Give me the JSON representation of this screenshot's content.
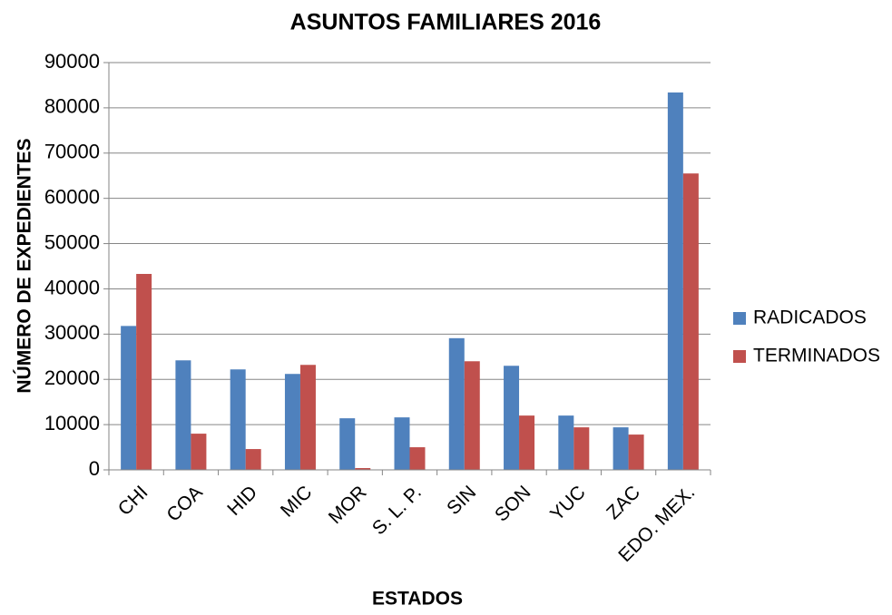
{
  "chart_data": {
    "type": "bar",
    "title": "ASUNTOS FAMILIARES 2016",
    "x_label": "ESTADOS",
    "y_label": "NÚMERO DE EXPEDIENTES",
    "categories": [
      "CHI",
      "COA",
      "HID",
      "MIC",
      "MOR",
      "S. L. P.",
      "SIN",
      "SON",
      "YUC",
      "ZAC",
      "EDO. MEX."
    ],
    "series": [
      {
        "name": "RADICADOS",
        "color": "#4f81bd",
        "values": [
          31800,
          24200,
          22200,
          21200,
          11400,
          11600,
          29100,
          23000,
          12000,
          9400,
          83400
        ]
      },
      {
        "name": "TERMINADOS",
        "color": "#c0504d",
        "values": [
          43300,
          8000,
          4600,
          23200,
          400,
          5000,
          24000,
          12000,
          9400,
          7800,
          65500
        ]
      }
    ],
    "ylim": [
      0,
      90000
    ],
    "yticks": [
      0,
      10000,
      20000,
      30000,
      40000,
      50000,
      60000,
      70000,
      80000,
      90000
    ],
    "grid": true,
    "legend": "right"
  }
}
